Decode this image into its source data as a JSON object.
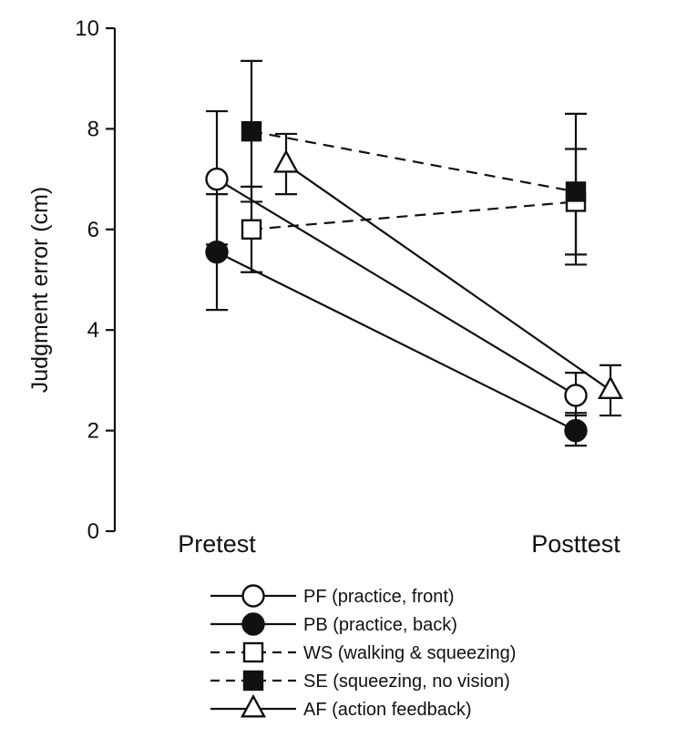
{
  "chart_data": {
    "type": "line",
    "categories": [
      "Pretest",
      "Posttest"
    ],
    "ylabel": "Judgment error (cm)",
    "ylim": [
      0,
      10
    ],
    "yticks": [
      0,
      2,
      4,
      6,
      8,
      10
    ],
    "grid": false,
    "legend_position": "bottom",
    "series": [
      {
        "name": "PF (practice, front)",
        "values": [
          7.0,
          2.7
        ],
        "err_low": [
          5.7,
          2.3
        ],
        "err_high": [
          8.35,
          3.15
        ],
        "marker": "circle-open",
        "line": "solid",
        "offset": [
          0,
          0
        ]
      },
      {
        "name": "PB (practice, back)",
        "values": [
          5.55,
          2.0
        ],
        "err_low": [
          4.4,
          1.7
        ],
        "err_high": [
          6.7,
          2.35
        ],
        "marker": "circle-filled",
        "line": "solid",
        "offset": [
          0,
          0
        ]
      },
      {
        "name": "WS (walking & squeezing)",
        "values": [
          6.0,
          6.55
        ],
        "err_low": [
          5.15,
          5.3
        ],
        "err_high": [
          6.85,
          7.6
        ],
        "marker": "square-open",
        "line": "dashed",
        "offset": [
          1,
          0
        ]
      },
      {
        "name": "SE (squeezing, no vision)",
        "values": [
          7.95,
          6.75
        ],
        "err_low": [
          6.55,
          5.5
        ],
        "err_high": [
          9.35,
          8.3
        ],
        "marker": "square-filled",
        "line": "dashed",
        "offset": [
          1,
          0
        ]
      },
      {
        "name": "AF (action feedback)",
        "values": [
          7.3,
          2.8
        ],
        "err_low": [
          6.7,
          2.3
        ],
        "err_high": [
          7.9,
          3.3
        ],
        "marker": "triangle-open",
        "line": "solid",
        "offset": [
          2,
          1
        ]
      }
    ]
  }
}
